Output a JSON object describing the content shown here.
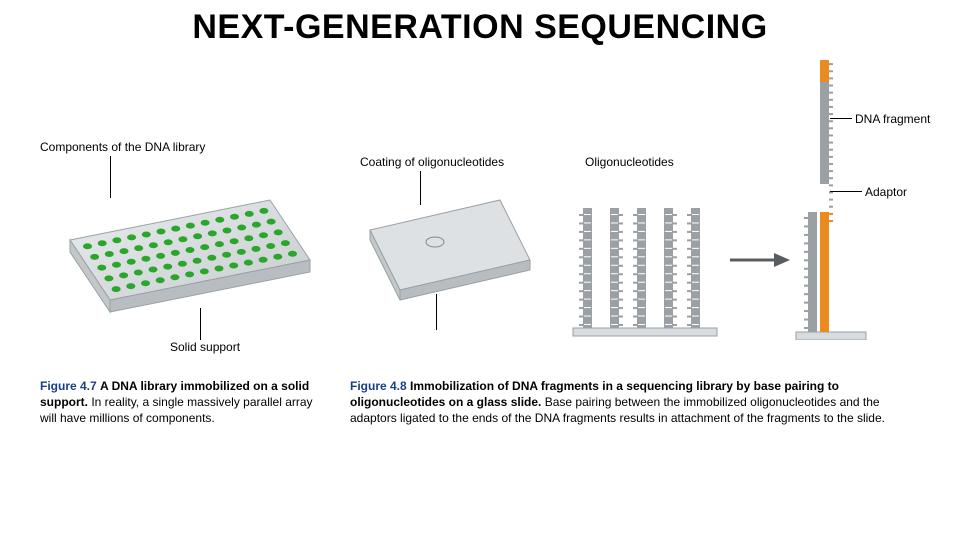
{
  "title": "NEXT-GENERATION SEQUENCING",
  "fig1": {
    "topLabel": "Components of the DNA library",
    "bottomLabel": "Solid support",
    "fignum": "Figure 4.7",
    "figtitle": "A DNA library immobilized on a solid support.",
    "figrest": " In reality, a single massively parallel array will have millions of components.",
    "plate": {
      "fill": "#d8dcdf",
      "edgeDark": "#9aa0a4",
      "edgeLight": "#e8ecee",
      "dot": "#2aa72a",
      "rows": 5,
      "cols": 13
    }
  },
  "fig2": {
    "label1": "Coating of oligonucleotides",
    "label2": "Oligonucleotides",
    "label3": "DNA fragment",
    "label4": "Adaptor",
    "fignum": "Figure 4.8",
    "figtitle": "Immobilization of DNA fragments in a sequencing library by base pairing to oligonucleotides on a glass slide.",
    "figrest": " Base pairing between the immobilized oligonucleotides and the adaptors ligated to the ends of the DNA fragments results in attachment of the fragments to the slide.",
    "colors": {
      "slideFill": "#d8dcdf",
      "slideEdge": "#9aa0a4",
      "strand": "#9aa0a4",
      "tick": "#ffffff",
      "adaptor": "#ea8a1f",
      "arrow": "#5a5d60"
    },
    "oligo": {
      "count": 5,
      "height": 120,
      "barWidth": 9,
      "gap": 18,
      "ticks": 14
    },
    "frag": {
      "adaptorLen": 28,
      "fragLen": 142,
      "ticks": 14
    }
  }
}
